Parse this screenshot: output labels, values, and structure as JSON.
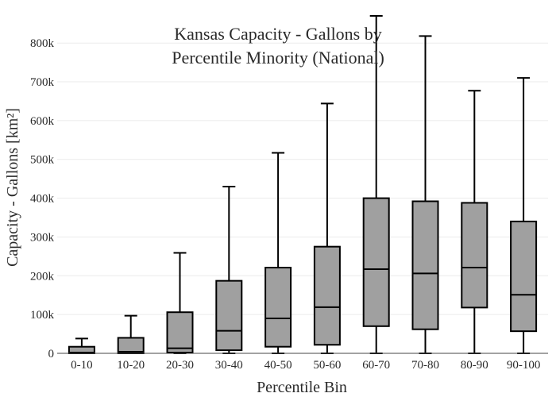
{
  "chart_data": {
    "type": "box",
    "title_lines": [
      "Kansas Capacity - Gallons by",
      "Percentile Minority (National)"
    ],
    "xlabel": "Percentile Bin",
    "ylabel": "Capacity - Gallons  [km²]",
    "ylim": [
      0,
      870000
    ],
    "yticks": [
      0,
      100000,
      200000,
      300000,
      400000,
      500000,
      600000,
      700000,
      800000
    ],
    "ytick_labels": [
      "0",
      "100k",
      "200k",
      "300k",
      "400k",
      "500k",
      "600k",
      "700k",
      "800k"
    ],
    "grid": true,
    "box_color": "#a0a0a0",
    "categories": [
      "0-10",
      "10-20",
      "20-30",
      "30-40",
      "40-50",
      "50-60",
      "60-70",
      "70-80",
      "80-90",
      "90-100"
    ],
    "boxes": [
      {
        "category": "0-10",
        "min": 0,
        "q1": 0,
        "median": 2000,
        "q3": 17000,
        "max": 38000
      },
      {
        "category": "10-20",
        "min": 0,
        "q1": 0,
        "median": 4000,
        "q3": 40000,
        "max": 97000
      },
      {
        "category": "20-30",
        "min": 0,
        "q1": 2000,
        "median": 13000,
        "q3": 106000,
        "max": 259000
      },
      {
        "category": "30-40",
        "min": 0,
        "q1": 8000,
        "median": 58000,
        "q3": 187000,
        "max": 430000
      },
      {
        "category": "40-50",
        "min": 0,
        "q1": 17000,
        "median": 90000,
        "q3": 221000,
        "max": 517000
      },
      {
        "category": "50-60",
        "min": 0,
        "q1": 22000,
        "median": 119000,
        "q3": 275000,
        "max": 644000
      },
      {
        "category": "60-70",
        "min": 0,
        "q1": 70000,
        "median": 217000,
        "q3": 400000,
        "max": 870000
      },
      {
        "category": "70-80",
        "min": 0,
        "q1": 62000,
        "median": 206000,
        "q3": 392000,
        "max": 818000
      },
      {
        "category": "80-90",
        "min": 0,
        "q1": 118000,
        "median": 221000,
        "q3": 388000,
        "max": 677000
      },
      {
        "category": "90-100",
        "min": 0,
        "q1": 57000,
        "median": 151000,
        "q3": 340000,
        "max": 710000
      }
    ]
  }
}
